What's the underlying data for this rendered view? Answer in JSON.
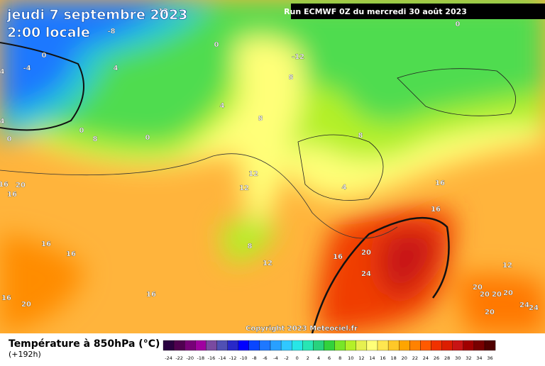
{
  "header": {
    "date": "jeudi 7 septembre 2023",
    "time": "2:00 locale",
    "run": "Run ECMWF 0Z du mercredi 30 août 2023"
  },
  "copyright": "Copyright 2023 Meteociel.fr",
  "legend": {
    "title": "Température à 850hPa (°C)",
    "lead": "(+192h)",
    "ticks": [
      -24,
      -22,
      -20,
      -18,
      -16,
      -14,
      -12,
      -10,
      -8,
      -6,
      -4,
      -2,
      0,
      2,
      4,
      6,
      8,
      10,
      12,
      14,
      16,
      18,
      20,
      22,
      24,
      26,
      28,
      30,
      32,
      34,
      36
    ],
    "colors": [
      "#2a0040",
      "#500050",
      "#780078",
      "#a000a0",
      "#7a4aa0",
      "#5050b4",
      "#2828c8",
      "#0000ff",
      "#0a46ff",
      "#1e78ff",
      "#28a0ff",
      "#30c8ff",
      "#28e6e6",
      "#28e6b4",
      "#28d27d",
      "#32d23c",
      "#78e628",
      "#b4f028",
      "#e6f050",
      "#ffff78",
      "#ffe650",
      "#ffc828",
      "#ffa500",
      "#ff8200",
      "#ff5a00",
      "#f03200",
      "#dc1e00",
      "#c81414",
      "#a00000",
      "#780000",
      "#500000"
    ]
  },
  "contour_labels": [
    "12",
    "-8",
    "0",
    "0",
    "-12",
    "4",
    "8",
    "-4",
    "0",
    "4",
    "4",
    "8",
    "0",
    "0",
    "8",
    "4",
    "0",
    "8",
    "12",
    "12",
    "16",
    "20",
    "16",
    "4",
    "16",
    "16",
    "16",
    "16",
    "8",
    "12",
    "16",
    "20",
    "24",
    "12",
    "16",
    "20",
    "16",
    "20",
    "20",
    "20",
    "20",
    "20",
    "24",
    "24"
  ]
}
